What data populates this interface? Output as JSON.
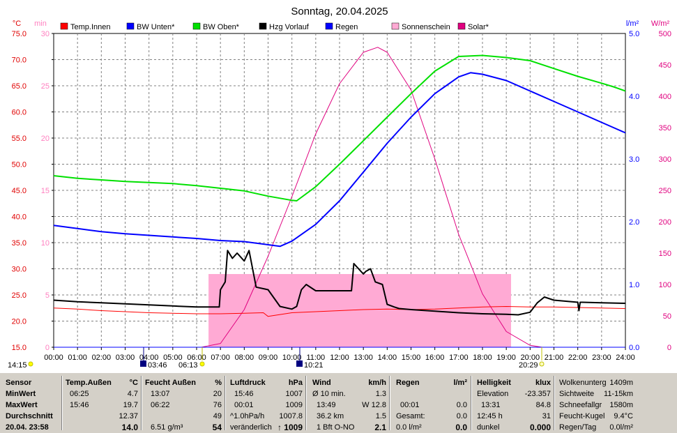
{
  "title": "Sonntag, 20.04.2025",
  "axis_units": {
    "left1": "°C",
    "left2": "min",
    "right1": "l/m²",
    "right2": "W/m²"
  },
  "colors": {
    "temp_innen": "#ff0000",
    "bw_unten": "#0000ff",
    "bw_oben": "#00e000",
    "hzg_vorlauf": "#000000",
    "regen": "#0000ff",
    "sonnenschein": "#ffaad4",
    "solar": "#e0007f"
  },
  "chart_data": {
    "type": "line",
    "title": "Sonntag, 20.04.2025",
    "x_ticks": [
      "00:00",
      "01:00",
      "02:00",
      "03:00",
      "04:00",
      "05:00",
      "06:00",
      "07:00",
      "08:00",
      "09:00",
      "10:00",
      "11:00",
      "12:00",
      "13:00",
      "14:00",
      "15:00",
      "16:00",
      "17:00",
      "18:00",
      "19:00",
      "20:00",
      "21:00",
      "22:00",
      "23:00",
      "24:00"
    ],
    "y_ticks_celsius": [
      "15.0",
      "20.0",
      "25.0",
      "30.0",
      "35.0",
      "40.0",
      "45.0",
      "50.0",
      "55.0",
      "60.0",
      "65.0",
      "70.0",
      "75.0"
    ],
    "y_ticks_min": [
      "0",
      "5",
      "10",
      "15",
      "20",
      "25",
      "30"
    ],
    "y_ticks_rain": [
      "0.0",
      "1.0",
      "2.0",
      "3.0",
      "4.0",
      "5.0"
    ],
    "y_ticks_solar": [
      "0",
      "50",
      "100",
      "150",
      "200",
      "250",
      "300",
      "350",
      "400",
      "450",
      "500"
    ],
    "ylim_celsius": [
      15,
      75
    ],
    "ylim_solar": [
      0,
      500
    ],
    "grid": true,
    "legend_position": "top",
    "series": [
      {
        "name": "Temp.Innen",
        "axis": "celsius",
        "color": "#ff0000",
        "x": [
          0,
          1,
          2,
          3,
          4,
          5,
          6,
          7,
          8,
          8.8,
          9,
          10,
          11,
          12,
          13,
          14,
          15,
          16,
          17,
          18,
          19,
          20,
          21,
          22,
          23,
          24
        ],
        "y": [
          22.5,
          22.3,
          22.0,
          21.8,
          21.6,
          21.5,
          21.4,
          21.4,
          21.5,
          21.6,
          20.9,
          21.6,
          21.8,
          22.0,
          22.2,
          22.3,
          22.2,
          22.3,
          22.5,
          22.7,
          22.8,
          22.7,
          22.7,
          22.6,
          22.5,
          22.4
        ]
      },
      {
        "name": "BW Unten*",
        "axis": "celsius",
        "color": "#0000ff",
        "x": [
          0,
          1,
          2,
          3,
          4,
          5,
          6,
          7,
          8,
          9,
          9.5,
          10,
          11,
          12,
          13,
          14,
          15,
          16,
          17,
          17.5,
          18,
          19,
          20,
          21,
          22,
          23,
          24
        ],
        "y": [
          38.3,
          37.7,
          37.1,
          36.7,
          36.4,
          36.1,
          35.8,
          35.4,
          35.2,
          34.6,
          34.3,
          35.3,
          38.5,
          43.0,
          48.5,
          54.0,
          59.0,
          63.5,
          66.7,
          67.5,
          67.2,
          66.0,
          64.0,
          62.0,
          60.0,
          58.0,
          56.0
        ]
      },
      {
        "name": "BW Oben*",
        "axis": "celsius",
        "color": "#00e000",
        "x": [
          0,
          1,
          2,
          3,
          4,
          5,
          6,
          7,
          8,
          9,
          10,
          10.2,
          11,
          12,
          13,
          14,
          15,
          16,
          17,
          18,
          19,
          20,
          21,
          22,
          23,
          23.5,
          24
        ],
        "y": [
          47.8,
          47.3,
          47.0,
          46.7,
          46.5,
          46.3,
          45.9,
          45.4,
          44.9,
          43.9,
          43.1,
          43.0,
          45.7,
          50.0,
          54.5,
          59.0,
          63.5,
          67.8,
          70.6,
          70.8,
          70.4,
          69.8,
          68.3,
          66.8,
          65.5,
          64.8,
          64.0
        ]
      },
      {
        "name": "Hzg Vorlauf",
        "axis": "celsius",
        "color": "#000000",
        "x": [
          0,
          1,
          2,
          3,
          4,
          5,
          6,
          6.95,
          7.0,
          7.2,
          7.3,
          7.5,
          7.7,
          8.0,
          8.2,
          8.5,
          9.0,
          9.5,
          10.0,
          10.2,
          10.4,
          10.6,
          11.0,
          11.3,
          11.5,
          12.0,
          12.5,
          12.6,
          12.7,
          13.0,
          13.1,
          13.3,
          13.5,
          13.8,
          14.0,
          14.3,
          14.5,
          15,
          16,
          17,
          18,
          19,
          19.5,
          20,
          20.3,
          20.6,
          21,
          22,
          22.05,
          22.1,
          22.2,
          23,
          24
        ],
        "y": [
          24.0,
          23.7,
          23.5,
          23.3,
          23.1,
          22.9,
          22.7,
          22.7,
          26.0,
          27.5,
          33.5,
          32.0,
          33.0,
          31.5,
          33.5,
          26.5,
          26.0,
          22.8,
          22.3,
          22.8,
          26.0,
          27.0,
          25.8,
          25.8,
          25.8,
          25.8,
          25.8,
          31.0,
          30.5,
          29.0,
          29.5,
          30.0,
          27.5,
          27.0,
          23.2,
          22.7,
          22.4,
          22.2,
          21.9,
          21.6,
          21.4,
          21.3,
          21.2,
          21.7,
          23.5,
          24.6,
          24.0,
          23.6,
          22.0,
          23.6,
          23.6,
          23.5,
          23.4
        ]
      },
      {
        "name": "Regen",
        "axis": "rain",
        "color": "#0000ff",
        "x": [
          0,
          24
        ],
        "y": [
          0,
          0
        ]
      },
      {
        "name": "Sonnenschein",
        "axis": "min",
        "color": "#ffaad4",
        "bars": [
          [
            6.5,
            19.2,
            7
          ],
          [
            6.55,
            6.62,
            4
          ],
          [
            7.0,
            7.05,
            4
          ]
        ]
      },
      {
        "name": "Solar*",
        "axis": "solar",
        "color": "#e0007f",
        "x": [
          6.2,
          7,
          8,
          9,
          10,
          11,
          12,
          13,
          13.6,
          14,
          15,
          16,
          17,
          18,
          19,
          20,
          20.5
        ],
        "y": [
          0,
          6,
          60,
          145,
          240,
          340,
          420,
          470,
          478,
          470,
          410,
          300,
          180,
          85,
          25,
          3,
          0
        ]
      }
    ]
  },
  "below_axis": {
    "sunrise_time": "06:13",
    "sunset_time": "20:29",
    "moonrise_time": "03:46",
    "moonset_time": "10:21",
    "left_time": "14:15"
  },
  "panel": {
    "sensor": {
      "header": "Sensor",
      "min": "MinWert",
      "max": "MaxWert",
      "avg": "Durchschnitt",
      "date": "20.04. 23:58"
    },
    "temp": {
      "header": "Temp.Außen",
      "unit": "°C",
      "min_time": "06:25",
      "min_val": "4.7",
      "max_time": "15:46",
      "max_val": "19.7",
      "avg": "12.37",
      "current": "14.0"
    },
    "humid": {
      "header": "Feucht Außen",
      "unit": "%",
      "min_time": "13:07",
      "min_val": "20",
      "max_time": "06:22",
      "max_val": "76",
      "avg": "49",
      "abs": "6.51 g/m³",
      "current": "54"
    },
    "pressure": {
      "header": "Luftdruck",
      "unit": "hPa",
      "min_time": "15:46",
      "min_val": "1007",
      "max_time": "00:01",
      "max_val": "1009",
      "trend_label": "^1.0hPa/h",
      "trend_val": "1007.8",
      "state": "veränderlich",
      "current": "1009"
    },
    "wind": {
      "header": "Wind",
      "unit": "km/h",
      "avg_label": "Ø 10 min.",
      "avg_val": "1.3",
      "gust_time": "13:49",
      "gust_val": "W 12.8",
      "dist": "36.2 km",
      "dist_val": "1.5",
      "dir": "1 Bft O-NO",
      "current": "2.1"
    },
    "rain": {
      "header": "Regen",
      "unit": "l/m²",
      "time": "00:01",
      "val1": "0.0",
      "total_label": "Gesamt:",
      "total_val": "0.0",
      "today": "0.0 l/m²",
      "current": "0.0"
    },
    "bright": {
      "header": "Helligkeit",
      "unit": "klux",
      "elev_label": "Elevation",
      "elev_val": "-23.357",
      "max_time": "13:31",
      "max_val": "84.8",
      "t2": "12:45 h",
      "v2": "31",
      "dark": "dunkel",
      "current": "0.000"
    },
    "misc": {
      "l1": "Wolkenunterg",
      "v1": "1409m",
      "l2": "Sichtweite",
      "v2": "11-15km",
      "l3": "Schneefallgr",
      "v3": "1580m",
      "l4": "Feucht-Kugel",
      "v4": "9.4°C",
      "l5": "Regen/Tag",
      "v5": "0.0l/m²"
    }
  }
}
